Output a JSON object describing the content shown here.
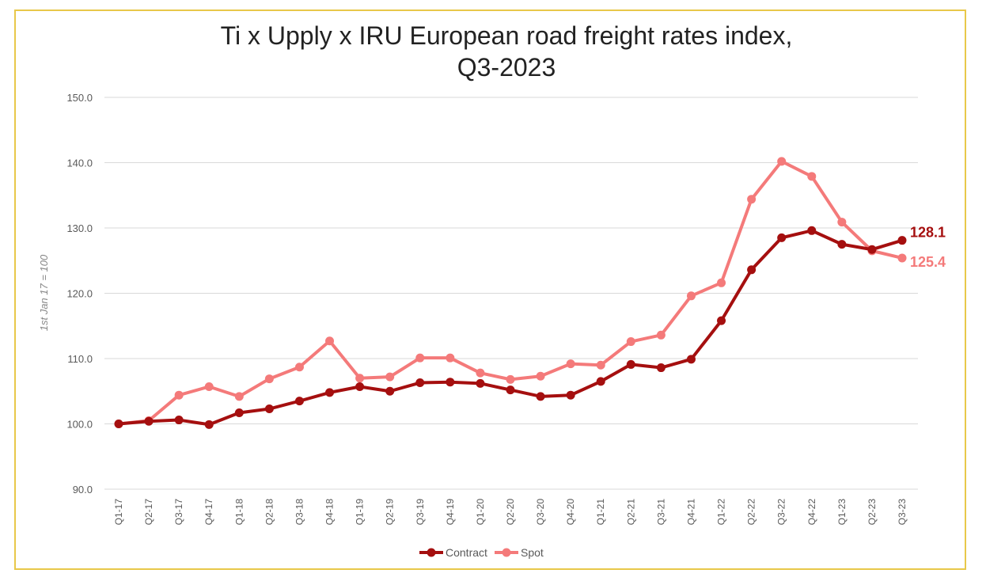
{
  "chart_data": {
    "type": "line",
    "title_line1": "Ti x Upply x IRU European road freight rates index,",
    "title_line2": "Q3-2023",
    "ylabel": "1st Jan 17 = 100",
    "xlabel": "",
    "ylim": [
      90,
      150
    ],
    "yticks": [
      "90.0",
      "100.0",
      "110.0",
      "120.0",
      "130.0",
      "140.0",
      "150.0"
    ],
    "grid": true,
    "legend_position": "bottom",
    "categories": [
      "Q1-17",
      "Q2-17",
      "Q3-17",
      "Q4-17",
      "Q1-18",
      "Q2-18",
      "Q3-18",
      "Q4-18",
      "Q1-19",
      "Q2-19",
      "Q3-19",
      "Q4-19",
      "Q1-20",
      "Q2-20",
      "Q3-20",
      "Q4-20",
      "Q1-21",
      "Q2-21",
      "Q3-21",
      "Q4-21",
      "Q1-22",
      "Q2-22",
      "Q3-22",
      "Q4-22",
      "Q1-23",
      "Q2-23",
      "Q3-23"
    ],
    "series": [
      {
        "name": "Contract",
        "color": "#a50f0f",
        "end_label": "128.1",
        "values": [
          100.0,
          100.4,
          100.6,
          99.9,
          101.7,
          102.3,
          103.5,
          104.8,
          105.7,
          105.0,
          106.3,
          106.4,
          106.2,
          105.2,
          104.2,
          104.4,
          106.5,
          109.1,
          108.6,
          109.9,
          115.8,
          123.6,
          128.5,
          129.6,
          127.5,
          126.7,
          128.1
        ]
      },
      {
        "name": "Spot",
        "color": "#f47a7a",
        "end_label": "125.4",
        "values": [
          100.0,
          100.5,
          104.4,
          105.7,
          104.2,
          106.9,
          108.7,
          112.7,
          107.0,
          107.2,
          110.1,
          110.1,
          107.8,
          106.8,
          107.3,
          109.2,
          109.0,
          112.6,
          113.6,
          119.6,
          121.6,
          134.4,
          140.2,
          137.9,
          130.9,
          126.5,
          125.4
        ]
      }
    ]
  }
}
